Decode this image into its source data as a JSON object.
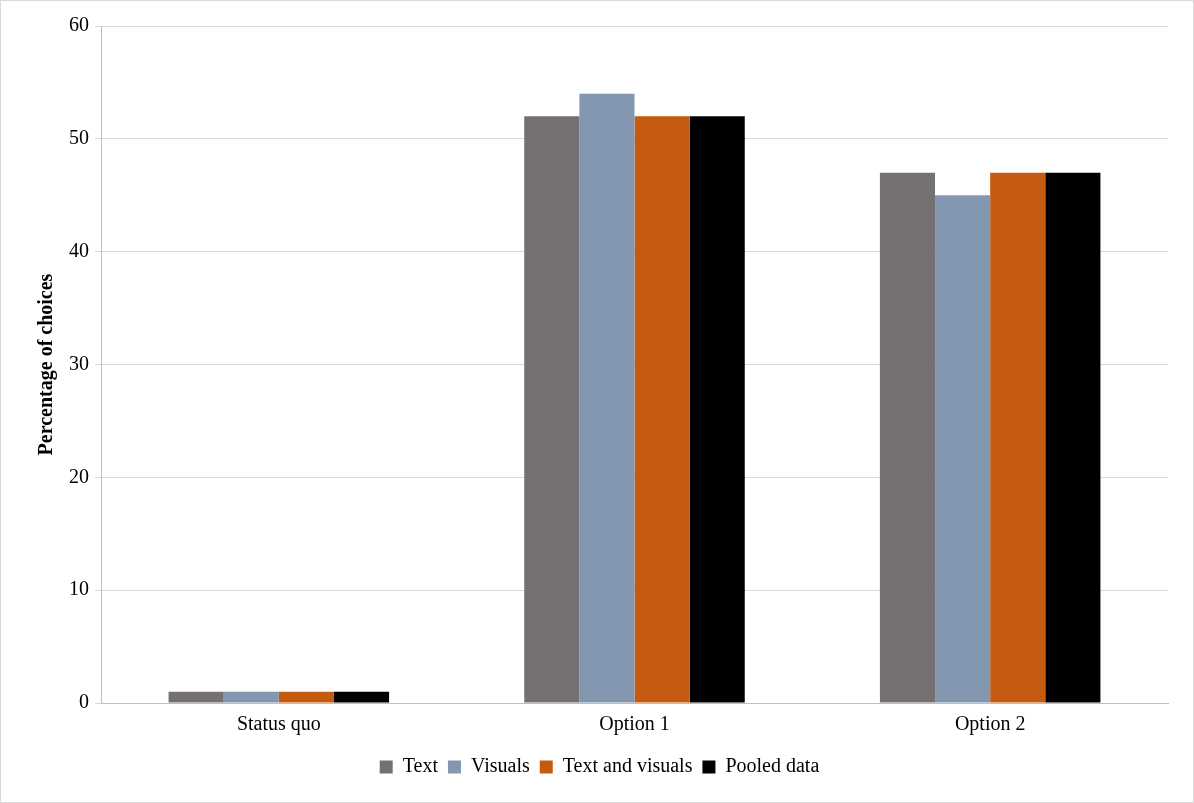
{
  "chart_data": {
    "type": "bar",
    "ylabel": "Percentage of choices",
    "categories": [
      "Status quo",
      "Option 1",
      "Option 2"
    ],
    "series": [
      {
        "name": "Text",
        "color": "#767171",
        "values": [
          1,
          52,
          47
        ]
      },
      {
        "name": "Visuals",
        "color": "#8497b0",
        "values": [
          1,
          54,
          45
        ]
      },
      {
        "name": "Text and visuals",
        "color": "#c55a11",
        "values": [
          1,
          52,
          47
        ]
      },
      {
        "name": "Pooled data",
        "color": "#000000",
        "values": [
          1,
          52,
          47
        ]
      }
    ],
    "ylim": [
      0,
      60
    ],
    "yticks": [
      0,
      10,
      20,
      30,
      40,
      50,
      60
    ],
    "grid": "y",
    "legend": "bottom"
  }
}
